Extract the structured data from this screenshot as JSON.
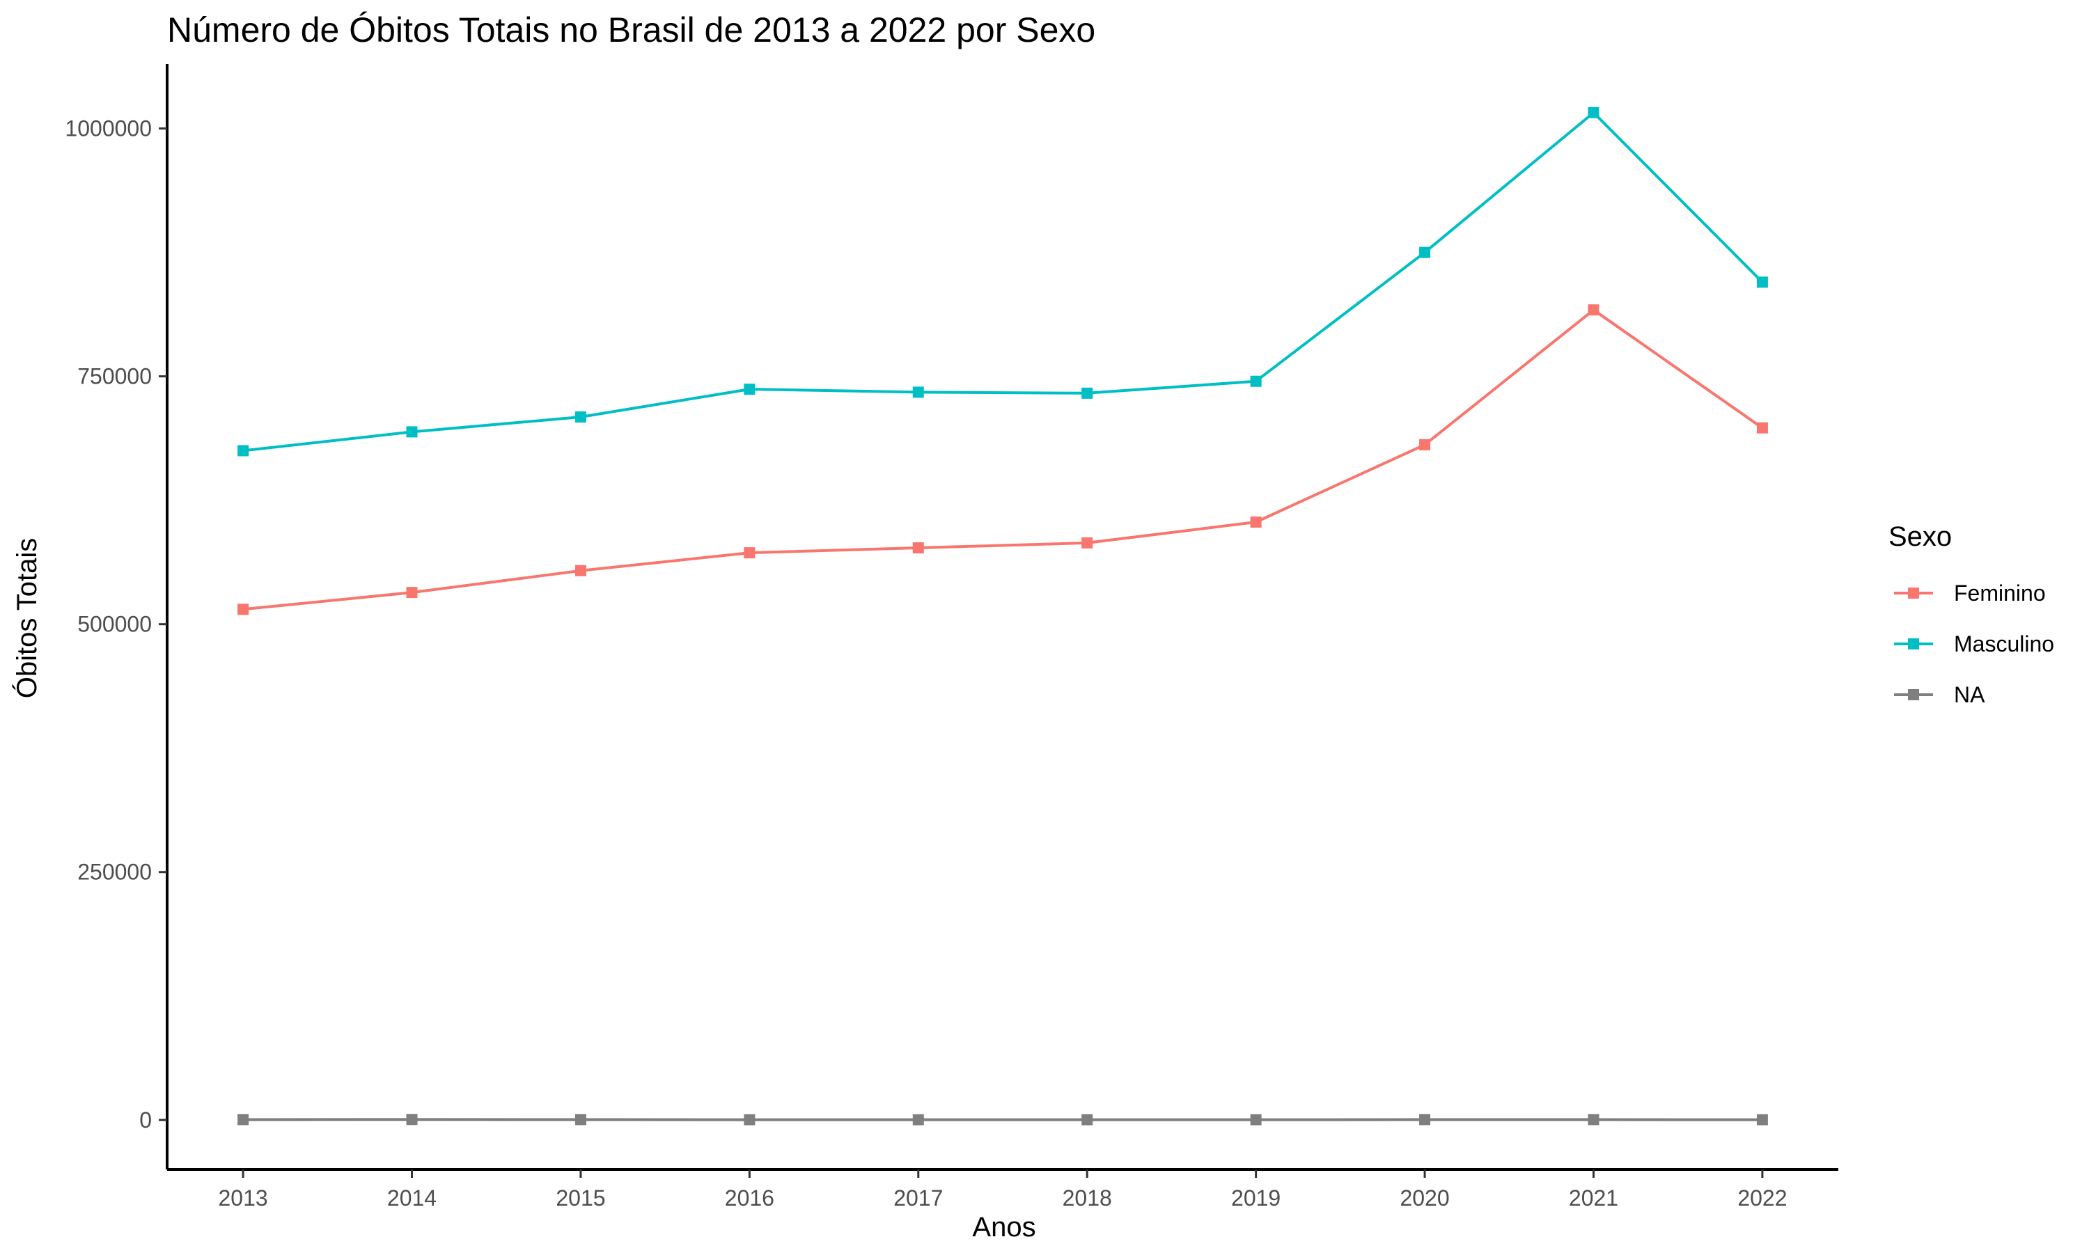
{
  "chart_data": {
    "type": "line",
    "title": "Número de Óbitos Totais no Brasil de 2013 a 2022 por Sexo",
    "xlabel": "Anos",
    "ylabel": "Óbitos Totais",
    "x": [
      "2013",
      "2014",
      "2015",
      "2016",
      "2017",
      "2018",
      "2019",
      "2020",
      "2021",
      "2022"
    ],
    "xlim": [
      2012.55,
      2022.45
    ],
    "ylim": [
      -50000,
      1065000
    ],
    "yticks": [
      0,
      250000,
      500000,
      750000,
      1000000
    ],
    "ytick_labels": [
      "0",
      "250000",
      "500000",
      "750000",
      "1000000"
    ],
    "grid": false,
    "legend": {
      "title": "Sexo",
      "position": "right"
    },
    "marker": "square",
    "series": [
      {
        "name": "Feminino",
        "color": "#F8766D",
        "values": [
          515000,
          532000,
          554000,
          572000,
          577000,
          582000,
          603000,
          681000,
          817000,
          698000
        ]
      },
      {
        "name": "Masculino",
        "color": "#00BFC4",
        "values": [
          675000,
          694000,
          709000,
          737000,
          734000,
          733000,
          745000,
          875000,
          1016000,
          845000
        ]
      },
      {
        "name": "NA",
        "color": "#7F7F7F",
        "values": [
          300,
          400,
          300,
          200,
          200,
          200,
          200,
          300,
          300,
          200
        ]
      }
    ]
  }
}
